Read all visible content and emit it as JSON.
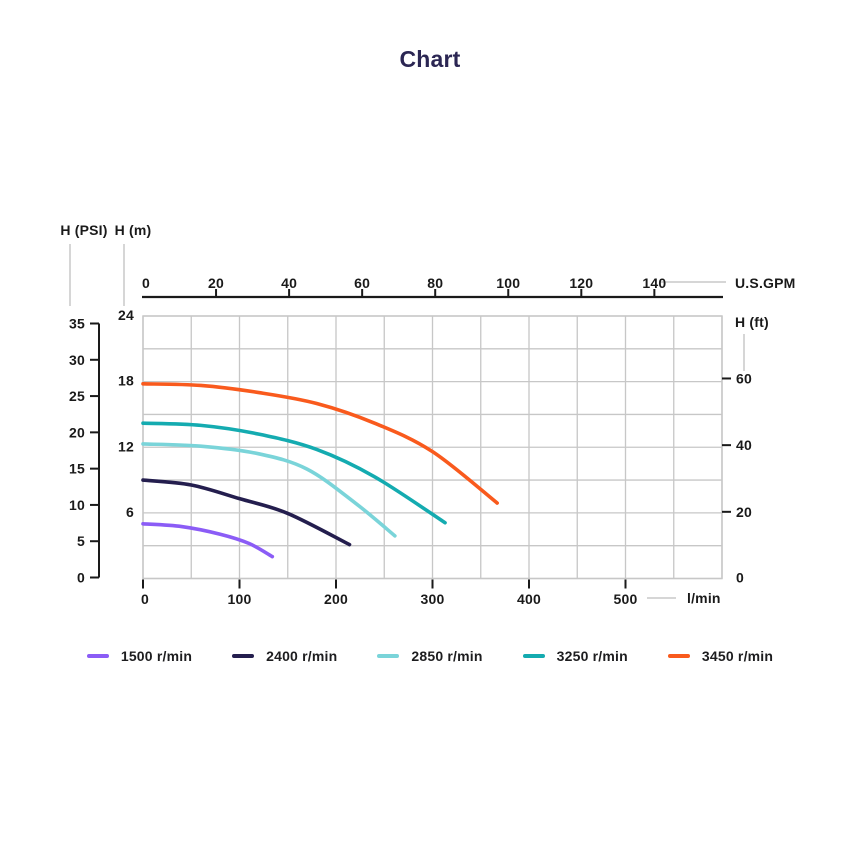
{
  "title": "Chart",
  "unit_labels": {
    "psi": "H (PSI)",
    "m": "H (m)",
    "gpm": "U.S.GPM",
    "ft": "H (ft)",
    "lmin": "l/min"
  },
  "chart_data": {
    "type": "line",
    "title": "Chart",
    "grid": true,
    "legend_position": "bottom",
    "axes": {
      "bottom": {
        "label": "l/min",
        "ticks": [
          0,
          100,
          200,
          300,
          400,
          500
        ],
        "range": [
          0,
          600
        ],
        "grid_step": 50
      },
      "top": {
        "label": "U.S.GPM",
        "ticks": [
          0,
          20,
          40,
          60,
          80,
          100,
          120,
          140
        ],
        "conversion": "1 U.S.GPM = 3.785 l/min"
      },
      "left_outer": {
        "label": "H (PSI)",
        "ticks": [
          35,
          30,
          25,
          20,
          15,
          10,
          5,
          0
        ],
        "range": [
          0,
          35
        ]
      },
      "left_inner": {
        "label": "H (m)",
        "ticks": [
          24,
          18,
          12,
          6
        ],
        "range": [
          0,
          24
        ],
        "grid_step": 3
      },
      "right": {
        "label": "H (ft)",
        "ticks": [
          60,
          40,
          20,
          0
        ],
        "conversion": "1 ft = 0.3048 m"
      }
    },
    "series": [
      {
        "name": "1500 r/min",
        "color": "#8B5CF6",
        "points_lmin_m": [
          [
            0,
            5.0
          ],
          [
            40,
            4.75
          ],
          [
            80,
            4.05
          ],
          [
            110,
            3.2
          ],
          [
            134,
            2.0
          ]
        ]
      },
      {
        "name": "2400 r/min",
        "color": "#241E4E",
        "points_lmin_m": [
          [
            0,
            9.0
          ],
          [
            50,
            8.55
          ],
          [
            100,
            7.3
          ],
          [
            150,
            5.95
          ],
          [
            214,
            3.1
          ]
        ]
      },
      {
        "name": "2850 r/min",
        "color": "#7AD4D9",
        "points_lmin_m": [
          [
            0,
            12.3
          ],
          [
            60,
            12.1
          ],
          [
            120,
            11.4
          ],
          [
            170,
            10.0
          ],
          [
            220,
            6.9
          ],
          [
            261,
            3.9
          ]
        ]
      },
      {
        "name": "3250 r/min",
        "color": "#14ABB0",
        "points_lmin_m": [
          [
            0,
            14.2
          ],
          [
            60,
            14.0
          ],
          [
            120,
            13.2
          ],
          [
            180,
            11.8
          ],
          [
            240,
            9.3
          ],
          [
            313,
            5.1
          ]
        ]
      },
      {
        "name": "3450 r/min",
        "color": "#F95A1D",
        "points_lmin_m": [
          [
            0,
            17.8
          ],
          [
            60,
            17.65
          ],
          [
            120,
            17.0
          ],
          [
            180,
            16.0
          ],
          [
            240,
            14.2
          ],
          [
            300,
            11.6
          ],
          [
            367,
            6.9
          ]
        ]
      }
    ]
  },
  "colors": {
    "title": "#2B2653",
    "axis_text": "#1A1A1A",
    "axis_line": "#1A1A1A",
    "grid": "#C7C7C7",
    "leader": "#C9C9C9",
    "background": "#FFFFFF"
  }
}
